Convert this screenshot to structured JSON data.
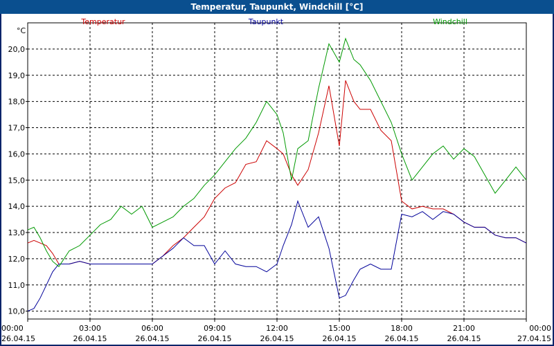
{
  "window": {
    "title": "Temperatur, Taupunkt, Windchill [°C]"
  },
  "chart_data": {
    "type": "line",
    "title": "Temperatur, Taupunkt, Windchill [°C]",
    "ylabel": "°C",
    "ylim": [
      9.7,
      21.0
    ],
    "yticks": [
      10.0,
      11.0,
      12.0,
      13.0,
      14.0,
      15.0,
      16.0,
      17.0,
      18.0,
      19.0,
      20.0
    ],
    "ytick_labels": [
      "10,0",
      "11,0",
      "12,0",
      "13,0",
      "14,0",
      "15,0",
      "16,0",
      "17,0",
      "18,0",
      "19,0",
      "20,0"
    ],
    "xlim": [
      0,
      24
    ],
    "xticks": [
      0,
      3,
      6,
      9,
      12,
      15,
      18,
      21,
      24
    ],
    "xtick_times": [
      "00:00",
      "03:00",
      "06:00",
      "09:00",
      "12:00",
      "15:00",
      "18:00",
      "21:00",
      "00:00"
    ],
    "xtick_dates": [
      "26.04.15",
      "26.04.15",
      "26.04.15",
      "26.04.15",
      "26.04.15",
      "26.04.15",
      "26.04.15",
      "26.04.15",
      "27.04.15"
    ],
    "grid": true,
    "legend_placement": "top",
    "colors": {
      "temperatur": "#cc0000",
      "taupunkt": "#000099",
      "windchill": "#009900",
      "grid": "#000000",
      "axis": "#000000"
    },
    "series": [
      {
        "name": "Temperatur",
        "x": [
          0,
          0.3,
          0.6,
          0.9,
          1.2,
          1.5,
          2,
          2.5,
          3,
          3.5,
          4,
          4.5,
          5,
          5.5,
          6,
          6.5,
          7,
          7.5,
          8,
          8.5,
          9,
          9.5,
          10,
          10.5,
          11,
          11.5,
          12,
          12.3,
          12.7,
          13,
          13.5,
          14,
          14.5,
          15,
          15.3,
          15.7,
          16,
          16.5,
          17,
          17.5,
          18,
          18.5,
          19,
          19.5,
          20,
          20.5,
          21,
          21.5,
          22,
          22.5,
          23,
          23.5,
          24
        ],
        "y": [
          12.6,
          12.7,
          12.6,
          12.5,
          12.2,
          11.8,
          11.8,
          11.9,
          11.8,
          11.8,
          11.8,
          11.8,
          11.8,
          11.8,
          11.8,
          12.1,
          12.5,
          12.8,
          13.2,
          13.6,
          14.3,
          14.7,
          14.9,
          15.6,
          15.7,
          16.5,
          16.2,
          16.0,
          15.2,
          14.8,
          15.4,
          16.8,
          18.6,
          16.3,
          18.8,
          18.0,
          17.7,
          17.7,
          16.9,
          16.5,
          14.2,
          13.9,
          14.0,
          13.9,
          13.9,
          13.7,
          13.4,
          13.2,
          13.2,
          12.9,
          12.8,
          12.8,
          12.6
        ]
      },
      {
        "name": "Taupunkt",
        "x": [
          0,
          0.3,
          0.6,
          0.9,
          1.2,
          1.5,
          2,
          2.5,
          3,
          3.5,
          4,
          4.5,
          5,
          5.5,
          6,
          6.5,
          7,
          7.5,
          8,
          8.5,
          9,
          9.5,
          10,
          10.5,
          11,
          11.5,
          12,
          12.3,
          12.7,
          13,
          13.5,
          14,
          14.5,
          15,
          15.3,
          15.7,
          16,
          16.5,
          17,
          17.5,
          18,
          18.5,
          19,
          19.5,
          20,
          20.5,
          21,
          21.5,
          22,
          22.5,
          23,
          23.5,
          24
        ],
        "y": [
          10.0,
          10.1,
          10.5,
          11.0,
          11.5,
          11.8,
          11.8,
          11.9,
          11.8,
          11.8,
          11.8,
          11.8,
          11.8,
          11.8,
          11.8,
          12.1,
          12.4,
          12.8,
          12.5,
          12.5,
          11.8,
          12.3,
          11.8,
          11.7,
          11.7,
          11.5,
          11.8,
          12.5,
          13.3,
          14.2,
          13.2,
          13.6,
          12.4,
          10.5,
          10.6,
          11.2,
          11.6,
          11.8,
          11.6,
          11.6,
          13.7,
          13.6,
          13.8,
          13.5,
          13.8,
          13.7,
          13.4,
          13.2,
          13.2,
          12.9,
          12.8,
          12.8,
          12.6
        ]
      },
      {
        "name": "Windchill",
        "x": [
          0,
          0.3,
          0.6,
          0.9,
          1.2,
          1.5,
          2,
          2.5,
          3,
          3.5,
          4,
          4.5,
          5,
          5.5,
          6,
          6.5,
          7,
          7.5,
          8,
          8.5,
          9,
          9.5,
          10,
          10.5,
          11,
          11.5,
          12,
          12.3,
          12.7,
          13,
          13.5,
          14,
          14.5,
          15,
          15.3,
          15.7,
          16,
          16.5,
          17,
          17.5,
          18,
          18.5,
          19,
          19.5,
          20,
          20.5,
          21,
          21.5,
          22,
          22.5,
          23,
          23.5,
          24
        ],
        "y": [
          13.1,
          13.2,
          12.8,
          12.3,
          11.9,
          11.7,
          12.3,
          12.5,
          12.9,
          13.3,
          13.5,
          14.0,
          13.7,
          14.0,
          13.2,
          13.4,
          13.6,
          14.0,
          14.3,
          14.8,
          15.2,
          15.7,
          16.2,
          16.6,
          17.2,
          18.0,
          17.5,
          16.8,
          15.0,
          16.2,
          16.5,
          18.5,
          20.2,
          19.5,
          20.4,
          19.6,
          19.4,
          18.8,
          18.0,
          17.2,
          16.0,
          15.0,
          15.5,
          16.0,
          16.3,
          15.8,
          16.2,
          15.9,
          15.2,
          14.5,
          15.0,
          15.5,
          15.0
        ]
      }
    ]
  }
}
